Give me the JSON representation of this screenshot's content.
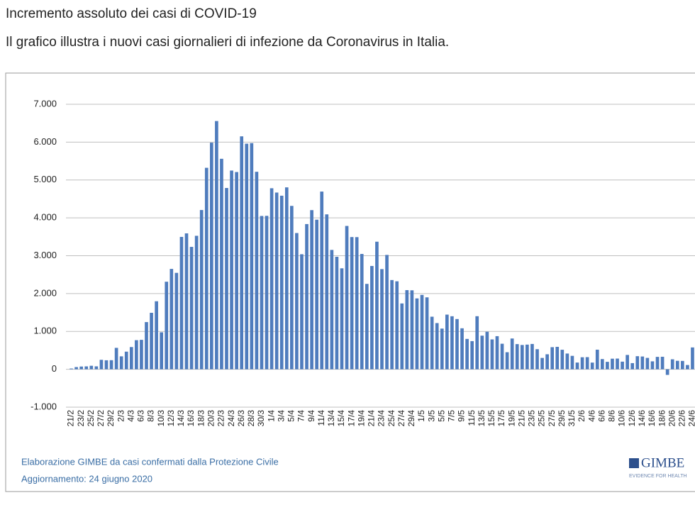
{
  "chart_data": {
    "type": "bar",
    "title": "Incremento assoluto dei casi di COVID-19",
    "subtitle": "Il grafico illustra i nuovi casi giornalieri di infezione da Coronavirus in Italia.",
    "source": "Elaborazione GIMBE da casi confermati dalla Protezione Civile",
    "updated": "Aggiornamento: 24 giugno 2020",
    "logo": "GIMBE",
    "logo_tagline": "EVIDENCE FOR HEALTH",
    "color": "#4f7cbd",
    "grid": true,
    "ylim": [
      -1000,
      7000
    ],
    "yticks": [
      {
        "value": -1000,
        "label": "-1.000"
      },
      0,
      {
        "value": 1000,
        "label": "1.000"
      },
      {
        "value": 2000,
        "label": "2.000"
      },
      {
        "value": 3000,
        "label": "3.000"
      },
      {
        "value": 4000,
        "label": "4.000"
      },
      {
        "value": 5000,
        "label": "5.000"
      },
      {
        "value": 6000,
        "label": "6.000"
      },
      {
        "value": 7000,
        "label": "7.000"
      }
    ],
    "categories": [
      "21/2",
      null,
      "23/2",
      null,
      "25/2",
      null,
      "27/2",
      null,
      "29/2",
      null,
      "2/3",
      null,
      "4/3",
      null,
      "6/3",
      null,
      "8/3",
      null,
      "10/3",
      null,
      "12/3",
      null,
      "14/3",
      null,
      "16/3",
      null,
      "18/3",
      null,
      "20/3",
      null,
      "22/3",
      null,
      "24/3",
      null,
      "26/3",
      null,
      "28/3",
      null,
      "30/3",
      null,
      "1/4",
      null,
      "3/4",
      null,
      "5/4",
      null,
      "7/4",
      null,
      "9/4",
      null,
      "11/4",
      null,
      "13/4",
      null,
      "15/4",
      null,
      "17/4",
      null,
      "19/4",
      null,
      "21/4",
      null,
      "23/4",
      null,
      "25/4",
      null,
      "27/4",
      null,
      "29/4",
      null,
      "1/5",
      null,
      "3/5",
      null,
      "5/5",
      null,
      "7/5",
      null,
      "9/5",
      null,
      "11/5",
      null,
      "13/5",
      null,
      "15/5",
      null,
      "17/5",
      null,
      "19/5",
      null,
      "21/5",
      null,
      "23/5",
      null,
      "25/5",
      null,
      "27/5",
      null,
      "29/5",
      null,
      "31/5",
      null,
      "2/6",
      null,
      "4/6",
      null,
      "6/6",
      null,
      "8/6",
      null,
      "10/6",
      null,
      "12/6",
      null,
      "14/6",
      null,
      "16/6",
      null,
      "18/6",
      null,
      "20/6",
      null,
      "22/6",
      null,
      "24/6"
    ],
    "values": [
      20,
      59,
      73,
      77,
      93,
      78,
      250,
      238,
      240,
      566,
      342,
      466,
      587,
      769,
      778,
      1247,
      1492,
      1797,
      977,
      2313,
      2651,
      2547,
      3497,
      3590,
      3233,
      3526,
      4207,
      5322,
      5986,
      6557,
      5560,
      4789,
      5249,
      5210,
      6153,
      5959,
      5974,
      5217,
      4050,
      4053,
      4782,
      4668,
      4585,
      4805,
      4316,
      3599,
      3039,
      3836,
      4204,
      3951,
      4694,
      4092,
      3153,
      2972,
      2667,
      3786,
      3493,
      3491,
      3047,
      2256,
      2729,
      3370,
      2646,
      3021,
      2357,
      2324,
      1739,
      2091,
      2086,
      1872,
      1965,
      1900,
      1389,
      1221,
      1075,
      1444,
      1401,
      1327,
      1083,
      802,
      744,
      1402,
      888,
      992,
      789,
      875,
      675,
      451,
      813,
      665,
      642,
      652,
      669,
      531,
      300,
      397,
      584,
      593,
      516,
      416,
      355,
      178,
      318,
      321,
      177,
      518,
      270,
      197,
      280,
      283,
      202,
      379,
      163,
      346,
      338,
      301,
      210,
      328,
      331,
      -148,
      264,
      224,
      221,
      113,
      577
    ]
  }
}
